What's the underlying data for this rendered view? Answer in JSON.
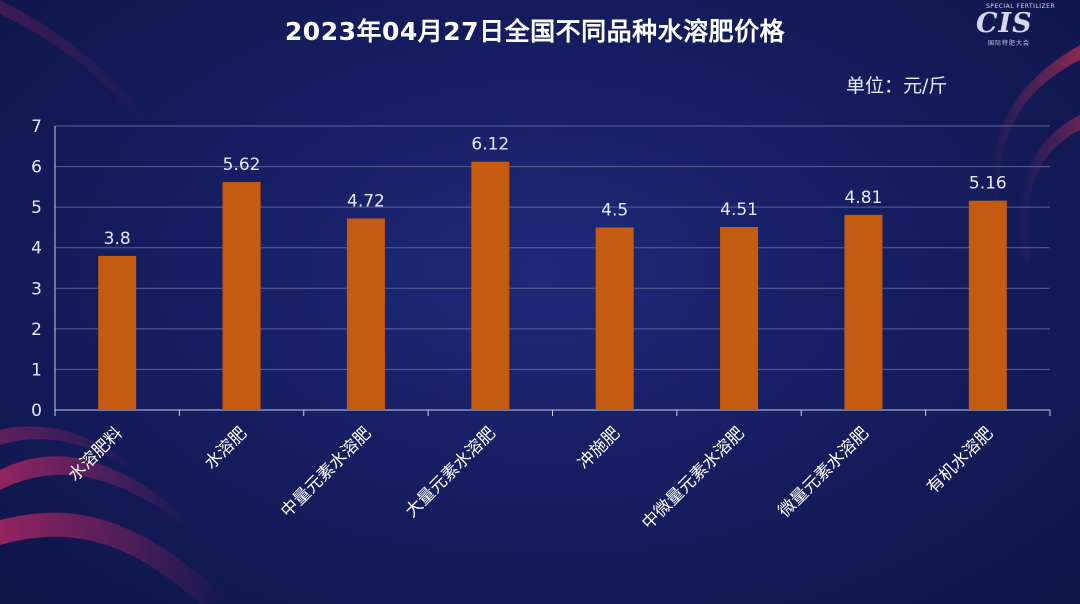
{
  "title": "2023年04月27日全国不同品种水溶肥价格",
  "unit": "单位：元/斤",
  "logo": {
    "tagline": "SPECIAL FERTILIZER",
    "mark": "CIS",
    "subtext": "国际特肥大会"
  },
  "colors": {
    "bar": "#c55a11",
    "axis": "#c9cde6",
    "grid": "#5a6299",
    "text": "#e6e9ff"
  },
  "chart_data": {
    "type": "bar",
    "title": "2023年04月27日全国不同品种水溶肥价格",
    "ylabel": "",
    "xlabel": "",
    "unit": "元/斤",
    "categories": [
      "水溶肥料",
      "水溶肥",
      "中量元素水溶肥",
      "大量元素水溶肥",
      "冲施肥",
      "中微量元素水溶肥",
      "微量元素水溶肥",
      "有机水溶肥"
    ],
    "values": [
      3.8,
      5.62,
      4.72,
      6.12,
      4.5,
      4.51,
      4.81,
      5.16
    ],
    "value_labels": [
      "3.8",
      "5.62",
      "4.72",
      "6.12",
      "4.5",
      "4.51",
      "4.81",
      "5.16"
    ],
    "ylim": [
      0,
      7
    ],
    "yticks": [
      0,
      1,
      2,
      3,
      4,
      5,
      6,
      7
    ],
    "grid": true,
    "legend": "none"
  }
}
